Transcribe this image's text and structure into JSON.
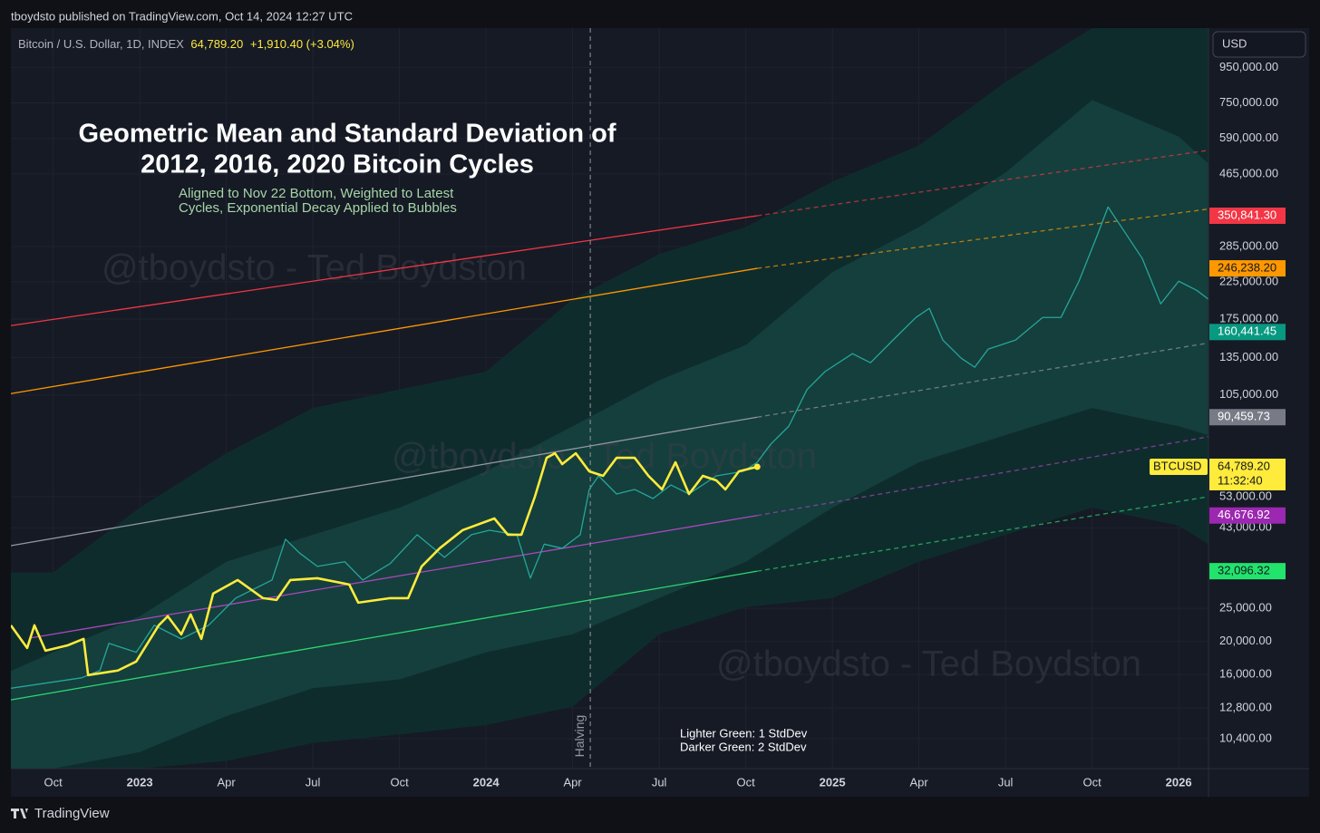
{
  "header": "tboydsto published on TradingView.com, Oct 14, 2024 12:27 UTC",
  "footer": "TradingView",
  "chart_data": {
    "type": "line",
    "symbol": "Bitcoin / U.S. Dollar, 1D, INDEX",
    "last": "64,789.20",
    "change": "+1,910.40 (+3.04%)",
    "currency": "USD",
    "title": [
      "Geometric Mean and Standard Deviation of",
      "2012, 2016, 2020 Bitcoin Cycles"
    ],
    "subtitle": [
      "Aligned to Nov 22 Bottom, Weighted to Latest",
      "Cycles, Exponential Decay Applied to Bubbles"
    ],
    "watermark": "@tboydsto - Ted Boydston",
    "notes": [
      "Lighter Green: 1 StdDev",
      "Darker Green: 2 StdDev"
    ],
    "halving": {
      "x": 2024.301,
      "label": "Halving"
    },
    "log_scale": true,
    "grid": true,
    "xlim": [
      2022.628,
      2026.086
    ],
    "ylim": [
      8500,
      1240000
    ],
    "xticks": [
      {
        "value": 2022.75,
        "label": "Oct"
      },
      2023,
      {
        "value": 2023.25,
        "label": "Apr"
      },
      {
        "value": 2023.5,
        "label": "Jul"
      },
      {
        "value": 2023.75,
        "label": "Oct"
      },
      2024,
      {
        "value": 2024.25,
        "label": "Apr"
      },
      {
        "value": 2024.5,
        "label": "Jul"
      },
      {
        "value": 2024.75,
        "label": "Oct"
      },
      2025,
      {
        "value": 2025.25,
        "label": "Apr"
      },
      {
        "value": 2025.5,
        "label": "Jul"
      },
      {
        "value": 2025.75,
        "label": "Oct"
      },
      2026
    ],
    "yticks": [
      {
        "value": 950000,
        "label": "950,000.00"
      },
      {
        "value": 750000,
        "label": "750,000.00"
      },
      {
        "value": 590000,
        "label": "590,000.00"
      },
      {
        "value": 465000,
        "label": "465,000.00"
      },
      {
        "value": 285000,
        "label": "285,000.00"
      },
      {
        "value": 225000,
        "label": "225,000.00"
      },
      {
        "value": 175000,
        "label": "175,000.00"
      },
      {
        "value": 135000,
        "label": "135,000.00"
      },
      {
        "value": 105000,
        "label": "105,000.00"
      },
      {
        "value": 53000,
        "label": "53,000.00"
      },
      {
        "value": 43000,
        "label": "43,000.00"
      },
      {
        "value": 25000,
        "label": "25,000.00"
      },
      {
        "value": 20000,
        "label": "20,000.00"
      },
      {
        "value": 16000,
        "label": "16,000.00"
      },
      {
        "value": 12800,
        "label": "12,800.00"
      },
      {
        "value": 10400,
        "label": "10,400.00"
      }
    ],
    "bands": [
      {
        "color": "#0f2c2d",
        "x": [
          2022.628,
          2022.75,
          2023.0,
          2023.25,
          2023.5,
          2023.75,
          2024.0,
          2024.25,
          2024.5,
          2024.75,
          2025.0,
          2025.25,
          2025.5,
          2025.75,
          2026.0,
          2026.086
        ],
        "upper": [
          31800,
          31800,
          49200,
          71000,
          96200,
          109000,
          123000,
          200000,
          271000,
          325000,
          441000,
          563000,
          863000,
          1240000,
          1240000,
          1240000
        ],
        "lower": [
          8500,
          8500,
          8500,
          8950,
          10100,
          10700,
          11400,
          12900,
          21000,
          25200,
          26800,
          34200,
          41000,
          49200,
          43600,
          38500
        ]
      },
      {
        "color": "#143f3c",
        "x": [
          2022.628,
          2022.75,
          2023.0,
          2023.25,
          2023.5,
          2023.75,
          2024.0,
          2024.25,
          2024.5,
          2024.75,
          2025.0,
          2025.25,
          2025.5,
          2025.75,
          2026.0,
          2026.086
        ],
        "upper": [
          16400,
          18600,
          23700,
          34200,
          41000,
          49200,
          62800,
          85100,
          116000,
          147000,
          240000,
          325000,
          469000,
          764000,
          598000,
          498000
        ],
        "lower": [
          8500,
          8500,
          9500,
          12100,
          14600,
          15500,
          18600,
          21000,
          26800,
          34200,
          49200,
          66800,
          80200,
          96200,
          85100,
          80200
        ]
      }
    ],
    "channels": [
      {
        "color": "#f23645",
        "x": [
          2022.628,
          2024.783,
          2026.086
        ],
        "values": [
          167500,
          350841.3,
          545000
        ],
        "style": [
          "solid",
          "dashed"
        ]
      },
      {
        "color": "#ff9800",
        "x": [
          2022.628,
          2024.783,
          2026.086
        ],
        "values": [
          106000,
          246238.2,
          367000
        ],
        "style": [
          "solid",
          "dashed"
        ]
      },
      {
        "color": "#9598a1",
        "x": [
          2022.628,
          2024.783,
          2026.086
        ],
        "values": [
          38100,
          90459.73,
          149000
        ],
        "style": [
          "solid",
          "dashed"
        ]
      },
      {
        "color": "#ab47bc",
        "x": [
          2022.688,
          2024.783,
          2026.086
        ],
        "values": [
          20500,
          46676.92,
          79300
        ],
        "style": [
          "solid",
          "dashed"
        ]
      },
      {
        "color": "#2ed573",
        "x": [
          2022.628,
          2024.783,
          2026.086
        ],
        "values": [
          13500,
          32096.32,
          53000
        ],
        "style": [
          "solid",
          "dashed"
        ]
      }
    ],
    "series": [
      {
        "color": "#26a69a",
        "width": 1.3,
        "x": [
          2022.628,
          2022.832,
          2022.885,
          2022.911,
          2022.99,
          2023.042,
          2023.12,
          2023.199,
          2023.277,
          2023.382,
          2023.421,
          2023.461,
          2023.513,
          2023.592,
          2023.644,
          2023.723,
          2023.801,
          2023.88,
          2023.958,
          2024.01,
          2024.089,
          2024.128,
          2024.168,
          2024.22,
          2024.272,
          2024.298,
          2024.325,
          2024.377,
          2024.429,
          2024.482,
          2024.534,
          2024.586,
          2024.665,
          2024.743,
          2024.783,
          2024.822,
          2024.874,
          2024.927,
          2024.979,
          2025.058,
          2025.11,
          2025.188,
          2025.241,
          2025.28,
          2025.319,
          2025.372,
          2025.411,
          2025.45,
          2025.529,
          2025.607,
          2025.66,
          2025.712,
          2025.764,
          2025.796,
          2025.843,
          2025.895,
          2025.948,
          2026.0,
          2026.052,
          2026.086
        ],
        "values": [
          14600,
          15660,
          16450,
          19750,
          18600,
          22300,
          20350,
          22300,
          26770,
          30240,
          39790,
          36310,
          33140,
          34200,
          30240,
          33760,
          41020,
          35230,
          41020,
          42280,
          41020,
          30610,
          38500,
          37430,
          41020,
          55630,
          60950,
          53950,
          55630,
          52330,
          57330,
          53950,
          60950,
          62830,
          66790,
          75420,
          85100,
          109000,
          123000,
          138700,
          130500,
          156600,
          176900,
          188100,
          152000,
          134500,
          126600,
          143000,
          152000,
          176900,
          176900,
          225800,
          306100,
          372000,
          315700,
          262900,
          193900,
          225800,
          212400,
          200000
        ]
      },
      {
        "name": "BTCUSD",
        "color": "#ffeb3b",
        "width": 2.6,
        "x": [
          2022.628,
          2022.675,
          2022.696,
          2022.728,
          2022.793,
          2022.838,
          2022.851,
          2022.937,
          2022.99,
          2023.055,
          2023.081,
          2023.12,
          2023.147,
          2023.178,
          2023.212,
          2023.283,
          2023.356,
          2023.395,
          2023.435,
          2023.513,
          2023.605,
          2023.631,
          2023.723,
          2023.775,
          2023.814,
          2023.866,
          2023.932,
          2024.024,
          2024.063,
          2024.102,
          2024.141,
          2024.175,
          2024.199,
          2024.22,
          2024.259,
          2024.298,
          2024.338,
          2024.377,
          2024.429,
          2024.469,
          2024.508,
          2024.547,
          2024.586,
          2024.626,
          2024.665,
          2024.691,
          2024.73,
          2024.783
        ],
        "values": [
          22300,
          19150,
          22300,
          18800,
          19500,
          20350,
          15950,
          16450,
          17480,
          22300,
          23700,
          20980,
          24000,
          20350,
          27600,
          30240,
          26770,
          26450,
          30240,
          30610,
          29340,
          25970,
          26770,
          26770,
          33140,
          37430,
          42280,
          45760,
          41020,
          41020,
          52970,
          68830,
          70950,
          65980,
          70950,
          62830,
          60950,
          68830,
          68830,
          60950,
          55630,
          66790,
          53950,
          60950,
          59110,
          55630,
          62830,
          64789.2
        ]
      }
    ],
    "price_labels": [
      {
        "value": 350841.3,
        "label": "350,841.30",
        "color": "#f23645",
        "text_color": "#ffffff"
      },
      {
        "value": 246238.2,
        "label": "246,238.20",
        "color": "#ff9800",
        "text_color": "#131722"
      },
      {
        "value": 160441.45,
        "label": "160,441.45",
        "color": "#089981",
        "text_color": "#ffffff"
      },
      {
        "value": 90459.73,
        "label": "90,459.73",
        "color": "#787b86",
        "text_color": "#ffffff"
      },
      {
        "value": 64789.2,
        "label": "64,789.20",
        "color": "#ffeb3b",
        "text_color": "#131722",
        "tag": "BTCUSD",
        "countdown": "11:32:40"
      },
      {
        "value": 46676.92,
        "label": "46,676.92",
        "color": "#9c27b0",
        "text_color": "#ffffff"
      },
      {
        "value": 32096.32,
        "label": "32,096.32",
        "color": "#22e36b",
        "text_color": "#131722"
      }
    ]
  }
}
